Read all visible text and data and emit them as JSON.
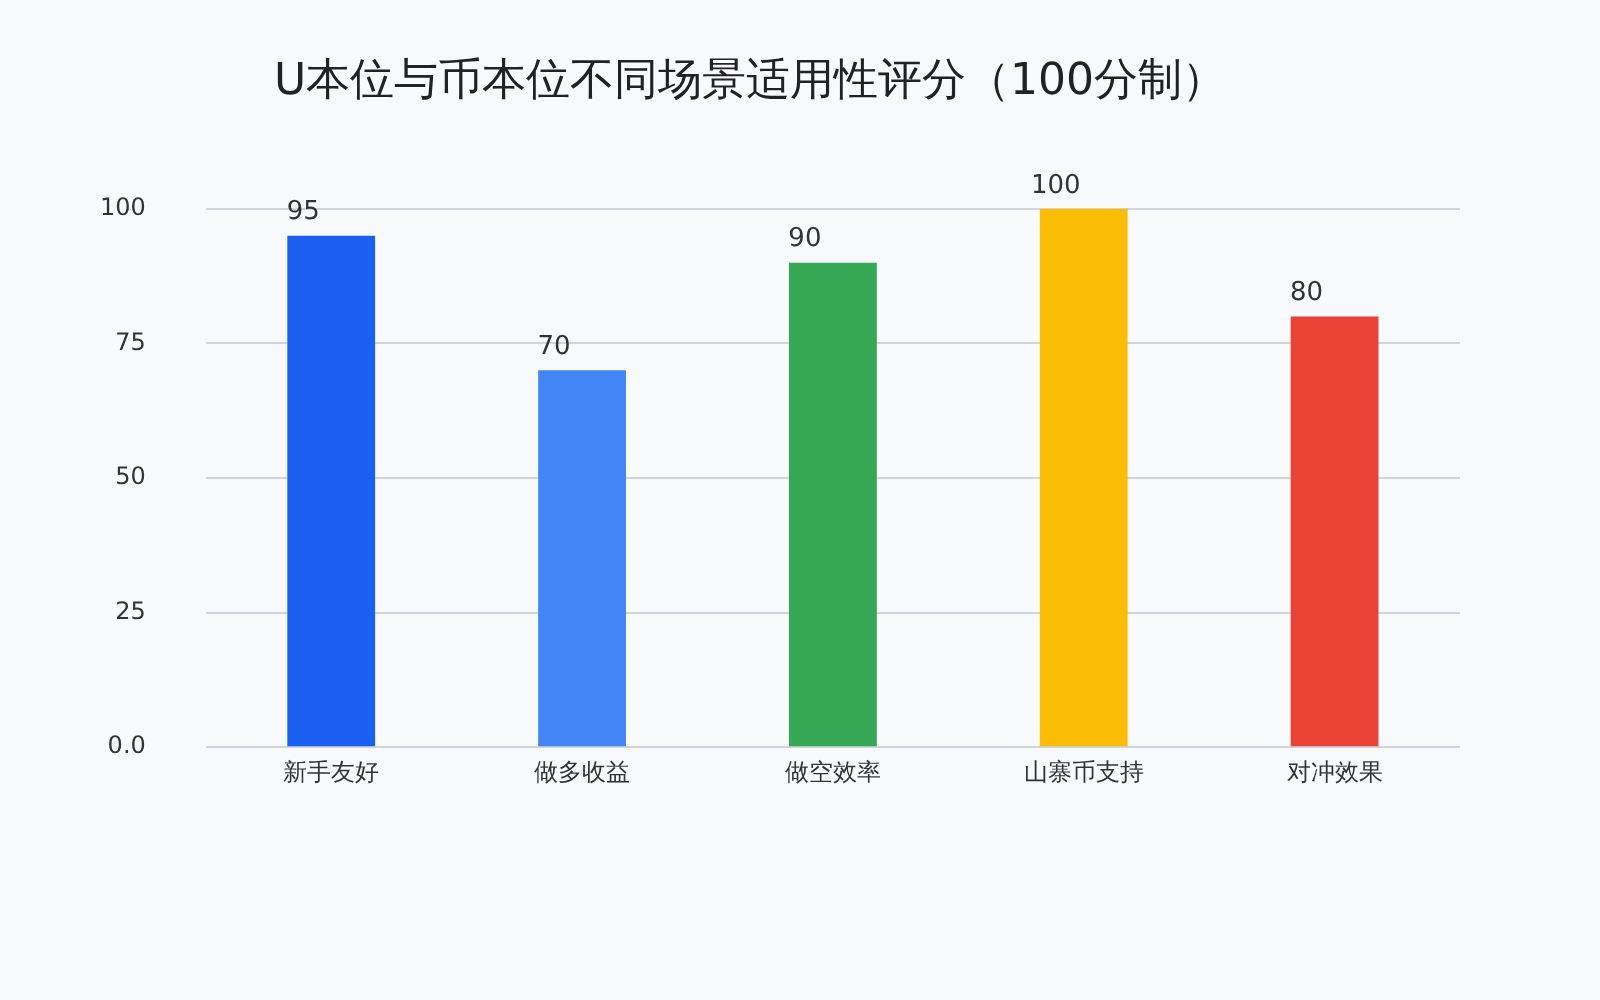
{
  "chart_data": {
    "type": "bar",
    "title": "U本位与币本位不同场景适用性评分（100分制）",
    "categories": [
      "新手友好",
      "做多收益",
      "做空效率",
      "山寨币支持",
      "对冲效果"
    ],
    "values": [
      95,
      70,
      90,
      100,
      80
    ],
    "colors": [
      "#1a5ff0",
      "#4285f4",
      "#34a853",
      "#fbbc04",
      "#ea4335"
    ],
    "ylim": [
      0,
      100
    ],
    "yticks": [
      {
        "value": 0,
        "label": "0.0"
      },
      25,
      50,
      75,
      100
    ],
    "grid": "y",
    "legend": false,
    "data_labels": true
  }
}
